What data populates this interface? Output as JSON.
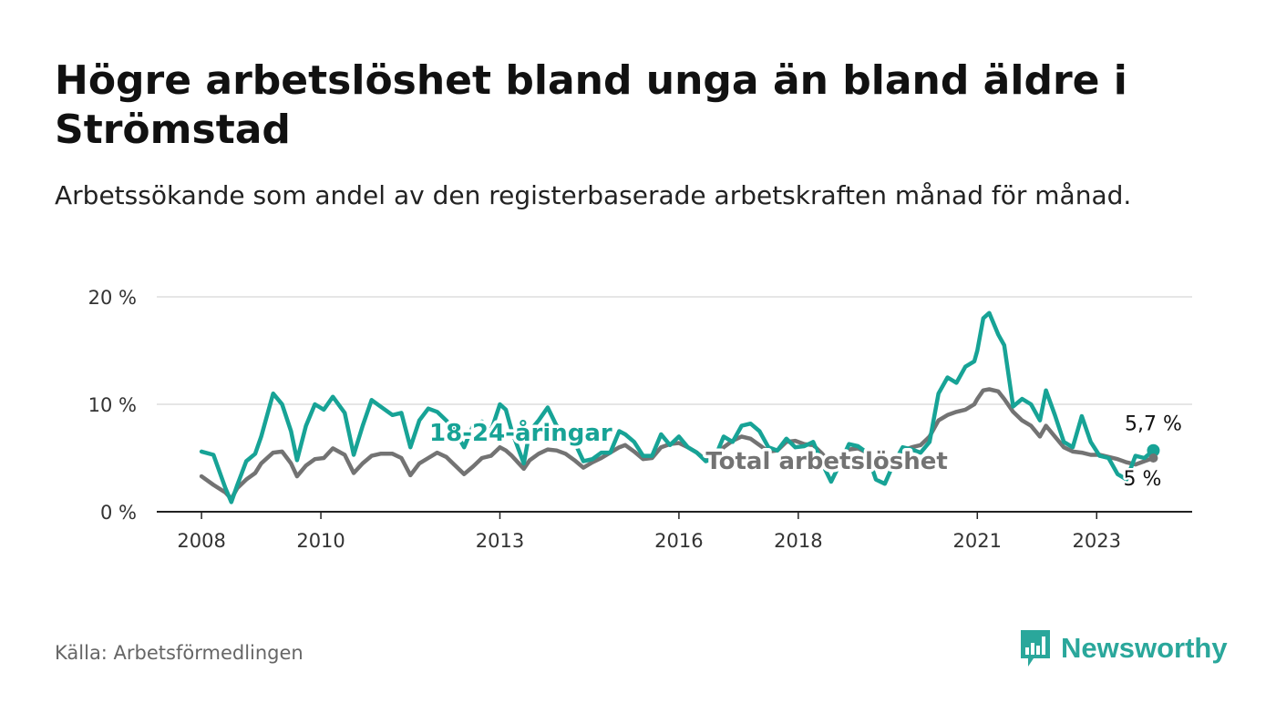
{
  "title": "Högre arbetslöshet bland unga än bland äldre i Strömstad",
  "subtitle": "Arbetssökande som andel av den registerbaserade arbetskraften månad för månad.",
  "source": "Källa: Arbetsförmedlingen",
  "brand": "Newsworthy",
  "colors": {
    "youth": "#17a396",
    "total": "#737373",
    "grid": "#dddddd",
    "axis": "#222222",
    "brand": "#2aa79b"
  },
  "chart_data": {
    "type": "line",
    "title": "Högre arbetslöshet bland unga än bland äldre i Strömstad",
    "xlabel": "",
    "ylabel": "",
    "xlim": [
      2007.25,
      2024.6
    ],
    "ylim": [
      0,
      20
    ],
    "yticks": [
      0,
      10,
      20
    ],
    "ytick_labels": [
      "0 %",
      "10 %",
      "20 %"
    ],
    "xticks": [
      2008,
      2010,
      2013,
      2016,
      2018,
      2021,
      2023
    ],
    "xtick_labels": [
      "2008",
      "2010",
      "2013",
      "2016",
      "2018",
      "2021",
      "2023"
    ],
    "grid": true,
    "series": [
      {
        "name": "18-24-åringar",
        "label": "18-24-åringar",
        "x": [
          2008.0,
          2008.2,
          2008.4,
          2008.5,
          2008.6,
          2008.75,
          2008.9,
          2009.0,
          2009.2,
          2009.35,
          2009.5,
          2009.6,
          2009.75,
          2009.9,
          2010.05,
          2010.2,
          2010.4,
          2010.55,
          2010.7,
          2010.85,
          2011.0,
          2011.2,
          2011.35,
          2011.5,
          2011.65,
          2011.8,
          2011.95,
          2012.1,
          2012.25,
          2012.4,
          2012.55,
          2012.7,
          2012.85,
          2013.0,
          2013.1,
          2013.2,
          2013.3,
          2013.4,
          2013.5,
          2013.65,
          2013.8,
          2013.95,
          2014.1,
          2014.25,
          2014.4,
          2014.55,
          2014.7,
          2014.85,
          2015.0,
          2015.1,
          2015.25,
          2015.4,
          2015.55,
          2015.7,
          2015.85,
          2016.0,
          2016.15,
          2016.3,
          2016.45,
          2016.6,
          2016.75,
          2016.9,
          2017.05,
          2017.2,
          2017.35,
          2017.5,
          2017.65,
          2017.8,
          2017.95,
          2018.1,
          2018.25,
          2018.4,
          2018.55,
          2018.7,
          2018.85,
          2019.0,
          2019.15,
          2019.3,
          2019.45,
          2019.6,
          2019.75,
          2019.9,
          2020.05,
          2020.2,
          2020.35,
          2020.5,
          2020.65,
          2020.8,
          2020.95,
          2021.0,
          2021.1,
          2021.2,
          2021.35,
          2021.45,
          2021.6,
          2021.75,
          2021.9,
          2022.05,
          2022.15,
          2022.3,
          2022.45,
          2022.6,
          2022.75,
          2022.9,
          2023.05,
          2023.2,
          2023.35,
          2023.5,
          2023.65,
          2023.8,
          2023.95
        ],
        "values": [
          5.6,
          5.3,
          2.2,
          0.9,
          2.5,
          4.7,
          5.4,
          7.0,
          11.0,
          10.0,
          7.5,
          4.8,
          8.0,
          10.0,
          9.5,
          10.7,
          9.2,
          5.3,
          8.0,
          10.4,
          9.8,
          9.0,
          9.2,
          6.0,
          8.5,
          9.6,
          9.3,
          8.5,
          7.5,
          6.0,
          8.0,
          8.4,
          7.5,
          10.0,
          9.5,
          7.5,
          6.0,
          4.5,
          7.5,
          8.5,
          9.7,
          8.0,
          7.5,
          6.5,
          4.7,
          4.9,
          5.5,
          5.5,
          7.5,
          7.2,
          6.5,
          5.2,
          5.2,
          7.2,
          6.2,
          7.0,
          6.0,
          5.5,
          4.7,
          5.0,
          7.0,
          6.5,
          8.0,
          8.2,
          7.5,
          6.0,
          5.7,
          6.8,
          6.0,
          6.1,
          6.5,
          4.5,
          2.8,
          4.5,
          6.3,
          6.1,
          5.5,
          3.0,
          2.6,
          4.5,
          6.0,
          5.8,
          5.5,
          6.5,
          11.0,
          12.5,
          12.0,
          13.5,
          14.0,
          15.0,
          18.0,
          18.5,
          16.5,
          15.5,
          9.8,
          10.5,
          10.0,
          8.5,
          11.3,
          9.0,
          6.5,
          6.0,
          8.9,
          6.5,
          5.2,
          5.0,
          3.5,
          3.0,
          5.2,
          5.0,
          5.7
        ]
      },
      {
        "name": "Total arbetslöshet",
        "label": "Total arbetslöshet",
        "x": [
          2008.0,
          2008.2,
          2008.4,
          2008.5,
          2008.6,
          2008.75,
          2008.9,
          2009.0,
          2009.2,
          2009.35,
          2009.5,
          2009.6,
          2009.75,
          2009.9,
          2010.05,
          2010.2,
          2010.4,
          2010.55,
          2010.7,
          2010.85,
          2011.0,
          2011.2,
          2011.35,
          2011.5,
          2011.65,
          2011.8,
          2011.95,
          2012.1,
          2012.25,
          2012.4,
          2012.55,
          2012.7,
          2012.85,
          2013.0,
          2013.1,
          2013.2,
          2013.3,
          2013.4,
          2013.5,
          2013.65,
          2013.8,
          2013.95,
          2014.1,
          2014.25,
          2014.4,
          2014.55,
          2014.7,
          2014.85,
          2015.0,
          2015.1,
          2015.25,
          2015.4,
          2015.55,
          2015.7,
          2015.85,
          2016.0,
          2016.15,
          2016.3,
          2016.45,
          2016.6,
          2016.75,
          2016.9,
          2017.05,
          2017.2,
          2017.35,
          2017.5,
          2017.65,
          2017.8,
          2017.95,
          2018.1,
          2018.25,
          2018.4,
          2018.55,
          2018.7,
          2018.85,
          2019.0,
          2019.15,
          2019.3,
          2019.45,
          2019.6,
          2019.75,
          2019.9,
          2020.05,
          2020.2,
          2020.35,
          2020.5,
          2020.65,
          2020.8,
          2020.95,
          2021.0,
          2021.1,
          2021.2,
          2021.35,
          2021.45,
          2021.6,
          2021.75,
          2021.9,
          2022.05,
          2022.15,
          2022.3,
          2022.45,
          2022.6,
          2022.75,
          2022.9,
          2023.05,
          2023.2,
          2023.35,
          2023.5,
          2023.65,
          2023.8,
          2023.95
        ],
        "values": [
          3.3,
          2.5,
          1.8,
          1.2,
          2.2,
          3.0,
          3.6,
          4.5,
          5.5,
          5.6,
          4.5,
          3.3,
          4.3,
          4.9,
          5.0,
          5.9,
          5.3,
          3.6,
          4.5,
          5.2,
          5.4,
          5.4,
          5.0,
          3.4,
          4.5,
          5.0,
          5.5,
          5.1,
          4.3,
          3.5,
          4.2,
          5.0,
          5.2,
          6.0,
          5.7,
          5.2,
          4.6,
          4.0,
          4.8,
          5.4,
          5.8,
          5.7,
          5.4,
          4.8,
          4.1,
          4.6,
          5.0,
          5.5,
          6.0,
          6.2,
          5.6,
          4.9,
          5.0,
          6.0,
          6.3,
          6.4,
          6.0,
          5.5,
          4.8,
          4.9,
          6.0,
          6.6,
          7.0,
          6.8,
          6.2,
          5.6,
          5.7,
          6.5,
          6.6,
          6.3,
          6.2,
          5.4,
          4.4,
          5.0,
          5.8,
          5.9,
          5.5,
          4.8,
          4.4,
          4.9,
          5.7,
          6.0,
          6.2,
          7.0,
          8.5,
          9.0,
          9.3,
          9.5,
          10.0,
          10.5,
          11.3,
          11.4,
          11.2,
          10.5,
          9.3,
          8.5,
          8.0,
          7.0,
          8.0,
          7.0,
          6.0,
          5.6,
          5.5,
          5.3,
          5.3,
          5.1,
          4.9,
          4.6,
          4.4,
          4.7,
          5.0
        ]
      }
    ],
    "annotations": [
      {
        "series": "18-24-åringar",
        "text": "5,7 %"
      },
      {
        "series": "Total arbetslöshet",
        "text": "5 %"
      }
    ]
  }
}
